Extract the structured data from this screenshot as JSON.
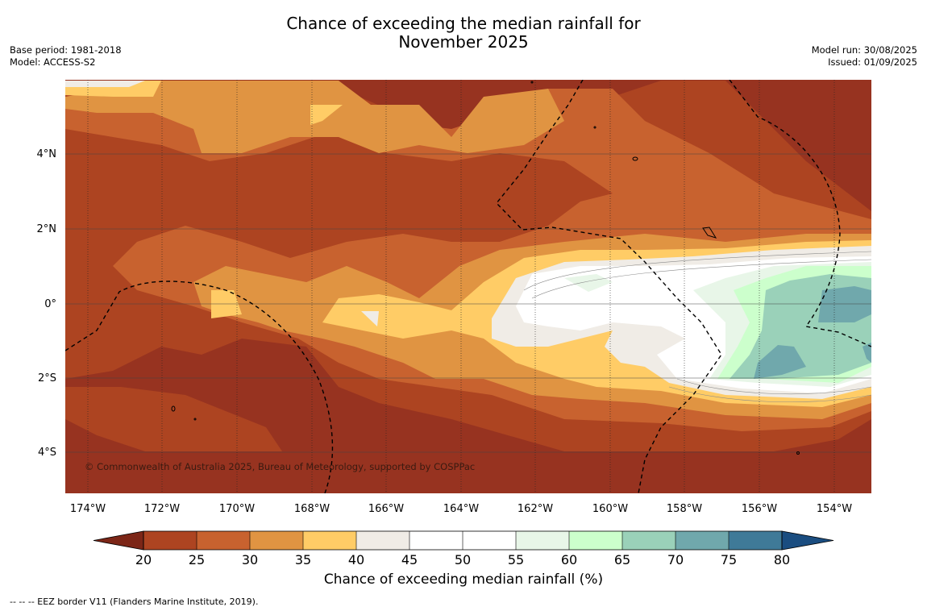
{
  "header": {
    "title_line1": "Chance of exceeding the median rainfall for",
    "title_line2": "November 2025",
    "base_period": "Base period: 1981-2018",
    "model": "Model: ACCESS-S2",
    "model_run": "Model run: 30/08/2025",
    "issued": "Issued: 01/09/2025"
  },
  "map": {
    "lat_labels": [
      "4°N",
      "2°N",
      "0°",
      "2°S",
      "4°S"
    ],
    "lon_labels": [
      "174°W",
      "172°W",
      "170°W",
      "168°W",
      "166°W",
      "164°W",
      "162°W",
      "160°W",
      "158°W",
      "156°W",
      "154°W"
    ],
    "copyright": "© Commonwealth of Australia 2025, Bureau of Meteorology, supported by COSPPac"
  },
  "colorbar": {
    "ticks": [
      "20",
      "25",
      "30",
      "35",
      "40",
      "45",
      "50",
      "55",
      "60",
      "65",
      "70",
      "75",
      "80"
    ],
    "colors": [
      "#7c2617",
      "#ad4421",
      "#c8622f",
      "#e09442",
      "#ffcc66",
      "#f0ece6",
      "#ffffff",
      "#ffffff",
      "#e8f6e8",
      "#ccffcc",
      "#9ad1b9",
      "#70a8ac",
      "#3f7a98",
      "#1a4d80"
    ],
    "label": "Chance of exceeding median rainfall (%)"
  },
  "footnote": "--  --  -- EEZ border V11 (Flanders Marine Institute, 2019)."
}
